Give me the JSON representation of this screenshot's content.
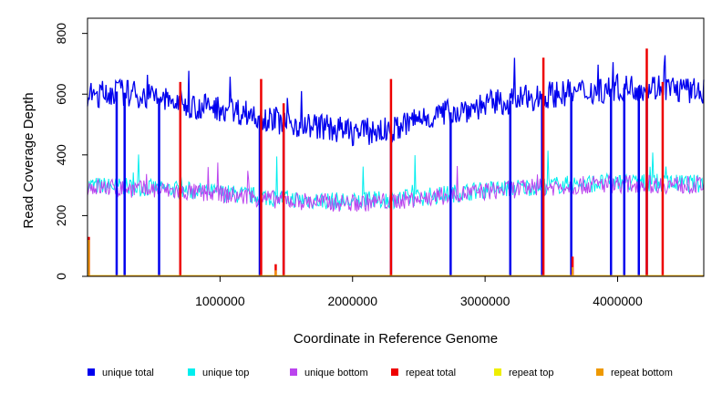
{
  "chart_data": {
    "type": "line",
    "title": "",
    "xlabel": "Coordinate in Reference Genome",
    "ylabel": "Read Coverage Depth",
    "xlim": [
      1,
      4650000
    ],
    "ylim": [
      0,
      850
    ],
    "x_ticks": [
      1000000,
      2000000,
      3000000,
      4000000
    ],
    "x_tick_labels": [
      "1000000",
      "2000000",
      "3000000",
      "4000000"
    ],
    "y_ticks": [
      0,
      200,
      400,
      600,
      800
    ],
    "y_tick_labels": [
      "0",
      "200",
      "400",
      "600",
      "800"
    ],
    "legend_position": "bottom",
    "series": [
      {
        "name": "unique total",
        "color": "#0000ee",
        "x": [
          0,
          200000,
          500000,
          800000,
          1000000,
          1300000,
          1500000,
          1800000,
          2000000,
          2300000,
          2500000,
          2800000,
          3000000,
          3300000,
          3500000,
          3800000,
          4000000,
          4300000,
          4650000
        ],
        "values": [
          590,
          610,
          590,
          560,
          555,
          530,
          505,
          490,
          475,
          480,
          520,
          545,
          565,
          585,
          600,
          610,
          620,
          625,
          605
        ]
      },
      {
        "name": "unique top",
        "color": "#00eeee",
        "x": [
          0,
          500000,
          1000000,
          1500000,
          2000000,
          2500000,
          3000000,
          3500000,
          4000000,
          4650000
        ],
        "values": [
          300,
          290,
          275,
          255,
          245,
          260,
          285,
          300,
          310,
          305
        ]
      },
      {
        "name": "unique bottom",
        "color": "#bb44ee",
        "x": [
          0,
          500000,
          1000000,
          1500000,
          2000000,
          2500000,
          3000000,
          3500000,
          4000000,
          4650000
        ],
        "values": [
          295,
          285,
          270,
          250,
          240,
          255,
          280,
          295,
          305,
          300
        ]
      },
      {
        "name": "repeat total",
        "color": "#ee0000",
        "x": [
          0,
          4650000
        ],
        "values": [
          0,
          0
        ]
      },
      {
        "name": "repeat top",
        "color": "#eeee00",
        "x": [
          0,
          4650000
        ],
        "values": [
          0,
          0
        ]
      },
      {
        "name": "repeat bottom",
        "color": "#ee9900",
        "x": [
          0,
          4650000
        ],
        "values": [
          0,
          0
        ]
      }
    ],
    "spikes": [
      {
        "x": 10000,
        "total": 130,
        "bottom": 120
      },
      {
        "x": 700000,
        "total": 640
      },
      {
        "x": 1310000,
        "total": 650
      },
      {
        "x": 1420000,
        "total": 40,
        "bottom": 20
      },
      {
        "x": 1480000,
        "total": 570
      },
      {
        "x": 2290000,
        "total": 650
      },
      {
        "x": 3440000,
        "total": 720
      },
      {
        "x": 3660000,
        "total": 65,
        "bottom": 30
      },
      {
        "x": 4220000,
        "total": 750
      },
      {
        "x": 4340000,
        "total": 640
      }
    ],
    "dips": [
      220000,
      280000,
      540000,
      700000,
      1300000,
      1480000,
      2290000,
      2740000,
      3190000,
      3430000,
      3650000,
      3950000,
      4050000,
      4160000,
      4220000
    ]
  }
}
